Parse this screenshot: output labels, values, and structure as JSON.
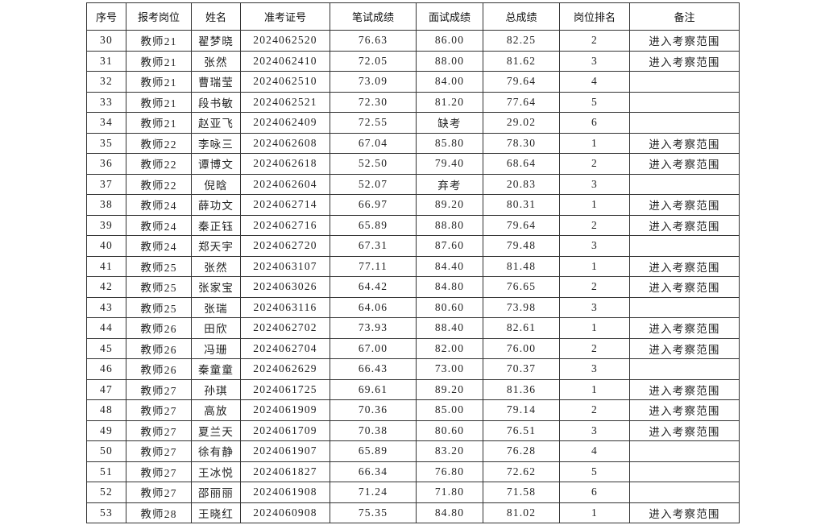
{
  "table": {
    "headers": [
      "序号",
      "报考岗位",
      "姓名",
      "准考证号",
      "笔试成绩",
      "面试成绩",
      "总成绩",
      "岗位排名",
      "备注"
    ],
    "rows": [
      [
        "30",
        "教师21",
        "翟梦晓",
        "2024062520",
        "76.63",
        "86.00",
        "82.25",
        "2",
        "进入考察范围"
      ],
      [
        "31",
        "教师21",
        "张然",
        "2024062410",
        "72.05",
        "88.00",
        "81.62",
        "3",
        "进入考察范围"
      ],
      [
        "32",
        "教师21",
        "曹瑞莹",
        "2024062510",
        "73.09",
        "84.00",
        "79.64",
        "4",
        ""
      ],
      [
        "33",
        "教师21",
        "段书敏",
        "2024062521",
        "72.30",
        "81.20",
        "77.64",
        "5",
        ""
      ],
      [
        "34",
        "教师21",
        "赵亚飞",
        "2024062409",
        "72.55",
        "缺考",
        "29.02",
        "6",
        ""
      ],
      [
        "35",
        "教师22",
        "李咏三",
        "2024062608",
        "67.04",
        "85.80",
        "78.30",
        "1",
        "进入考察范围"
      ],
      [
        "36",
        "教师22",
        "谭博文",
        "2024062618",
        "52.50",
        "79.40",
        "68.64",
        "2",
        "进入考察范围"
      ],
      [
        "37",
        "教师22",
        "倪晗",
        "2024062604",
        "52.07",
        "弃考",
        "20.83",
        "3",
        ""
      ],
      [
        "38",
        "教师24",
        "薛功文",
        "2024062714",
        "66.97",
        "89.20",
        "80.31",
        "1",
        "进入考察范围"
      ],
      [
        "39",
        "教师24",
        "秦正钰",
        "2024062716",
        "65.89",
        "88.80",
        "79.64",
        "2",
        "进入考察范围"
      ],
      [
        "40",
        "教师24",
        "郑天宇",
        "2024062720",
        "67.31",
        "87.60",
        "79.48",
        "3",
        ""
      ],
      [
        "41",
        "教师25",
        "张然",
        "2024063107",
        "77.11",
        "84.40",
        "81.48",
        "1",
        "进入考察范围"
      ],
      [
        "42",
        "教师25",
        "张家宝",
        "2024063026",
        "64.42",
        "84.80",
        "76.65",
        "2",
        "进入考察范围"
      ],
      [
        "43",
        "教师25",
        "张瑞",
        "2024063116",
        "64.06",
        "80.60",
        "73.98",
        "3",
        ""
      ],
      [
        "44",
        "教师26",
        "田欣",
        "2024062702",
        "73.93",
        "88.40",
        "82.61",
        "1",
        "进入考察范围"
      ],
      [
        "45",
        "教师26",
        "冯珊",
        "2024062704",
        "67.00",
        "82.00",
        "76.00",
        "2",
        "进入考察范围"
      ],
      [
        "46",
        "教师26",
        "秦童童",
        "2024062629",
        "66.43",
        "73.00",
        "70.37",
        "3",
        ""
      ],
      [
        "47",
        "教师27",
        "孙琪",
        "2024061725",
        "69.61",
        "89.20",
        "81.36",
        "1",
        "进入考察范围"
      ],
      [
        "48",
        "教师27",
        "高放",
        "2024061909",
        "70.36",
        "85.00",
        "79.14",
        "2",
        "进入考察范围"
      ],
      [
        "49",
        "教师27",
        "夏兰天",
        "2024061709",
        "70.38",
        "80.60",
        "76.51",
        "3",
        "进入考察范围"
      ],
      [
        "50",
        "教师27",
        "徐有静",
        "2024061907",
        "65.89",
        "83.20",
        "76.28",
        "4",
        ""
      ],
      [
        "51",
        "教师27",
        "王冰悦",
        "2024061827",
        "66.34",
        "76.80",
        "72.62",
        "5",
        ""
      ],
      [
        "52",
        "教师27",
        "邵丽丽",
        "2024061908",
        "71.24",
        "71.80",
        "71.58",
        "6",
        ""
      ],
      [
        "53",
        "教师28",
        "王晓红",
        "2024060908",
        "75.35",
        "84.80",
        "81.02",
        "1",
        "进入考察范围"
      ]
    ]
  }
}
